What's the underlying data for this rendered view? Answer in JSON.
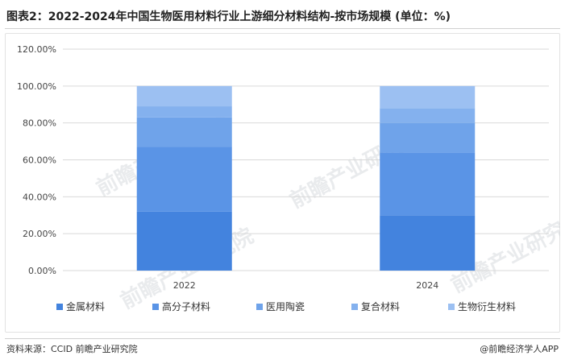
{
  "title": "图表2：2022-2024年中国生物医用材料行业上游细分材料结构-按市场规模 (单位：%)",
  "source": "资料来源：CCID 前瞻产业研究院",
  "credit": "@前瞻经济学人APP",
  "watermark": "前瞻产业研究院",
  "chart_data": {
    "type": "bar",
    "stacked": true,
    "categories": [
      "2022",
      "2024"
    ],
    "ylim": [
      0,
      120
    ],
    "yticks": [
      0,
      20,
      40,
      60,
      80,
      100,
      120
    ],
    "ytick_labels": [
      "0.00%",
      "20.00%",
      "40.00%",
      "60.00%",
      "80.00%",
      "100.00%",
      "120.00%"
    ],
    "grid": true,
    "legend_position": "bottom",
    "series": [
      {
        "name": "金属材料",
        "color": "#4383de",
        "values": [
          32,
          30
        ]
      },
      {
        "name": "高分子材料",
        "color": "#5a94e6",
        "values": [
          35,
          34
        ]
      },
      {
        "name": "医用陶瓷",
        "color": "#6fa3ea",
        "values": [
          16,
          16
        ]
      },
      {
        "name": "复合材料",
        "color": "#84b1ee",
        "values": [
          6,
          8
        ]
      },
      {
        "name": "生物衍生材料",
        "color": "#9cc0f2",
        "values": [
          11,
          12
        ]
      }
    ]
  }
}
